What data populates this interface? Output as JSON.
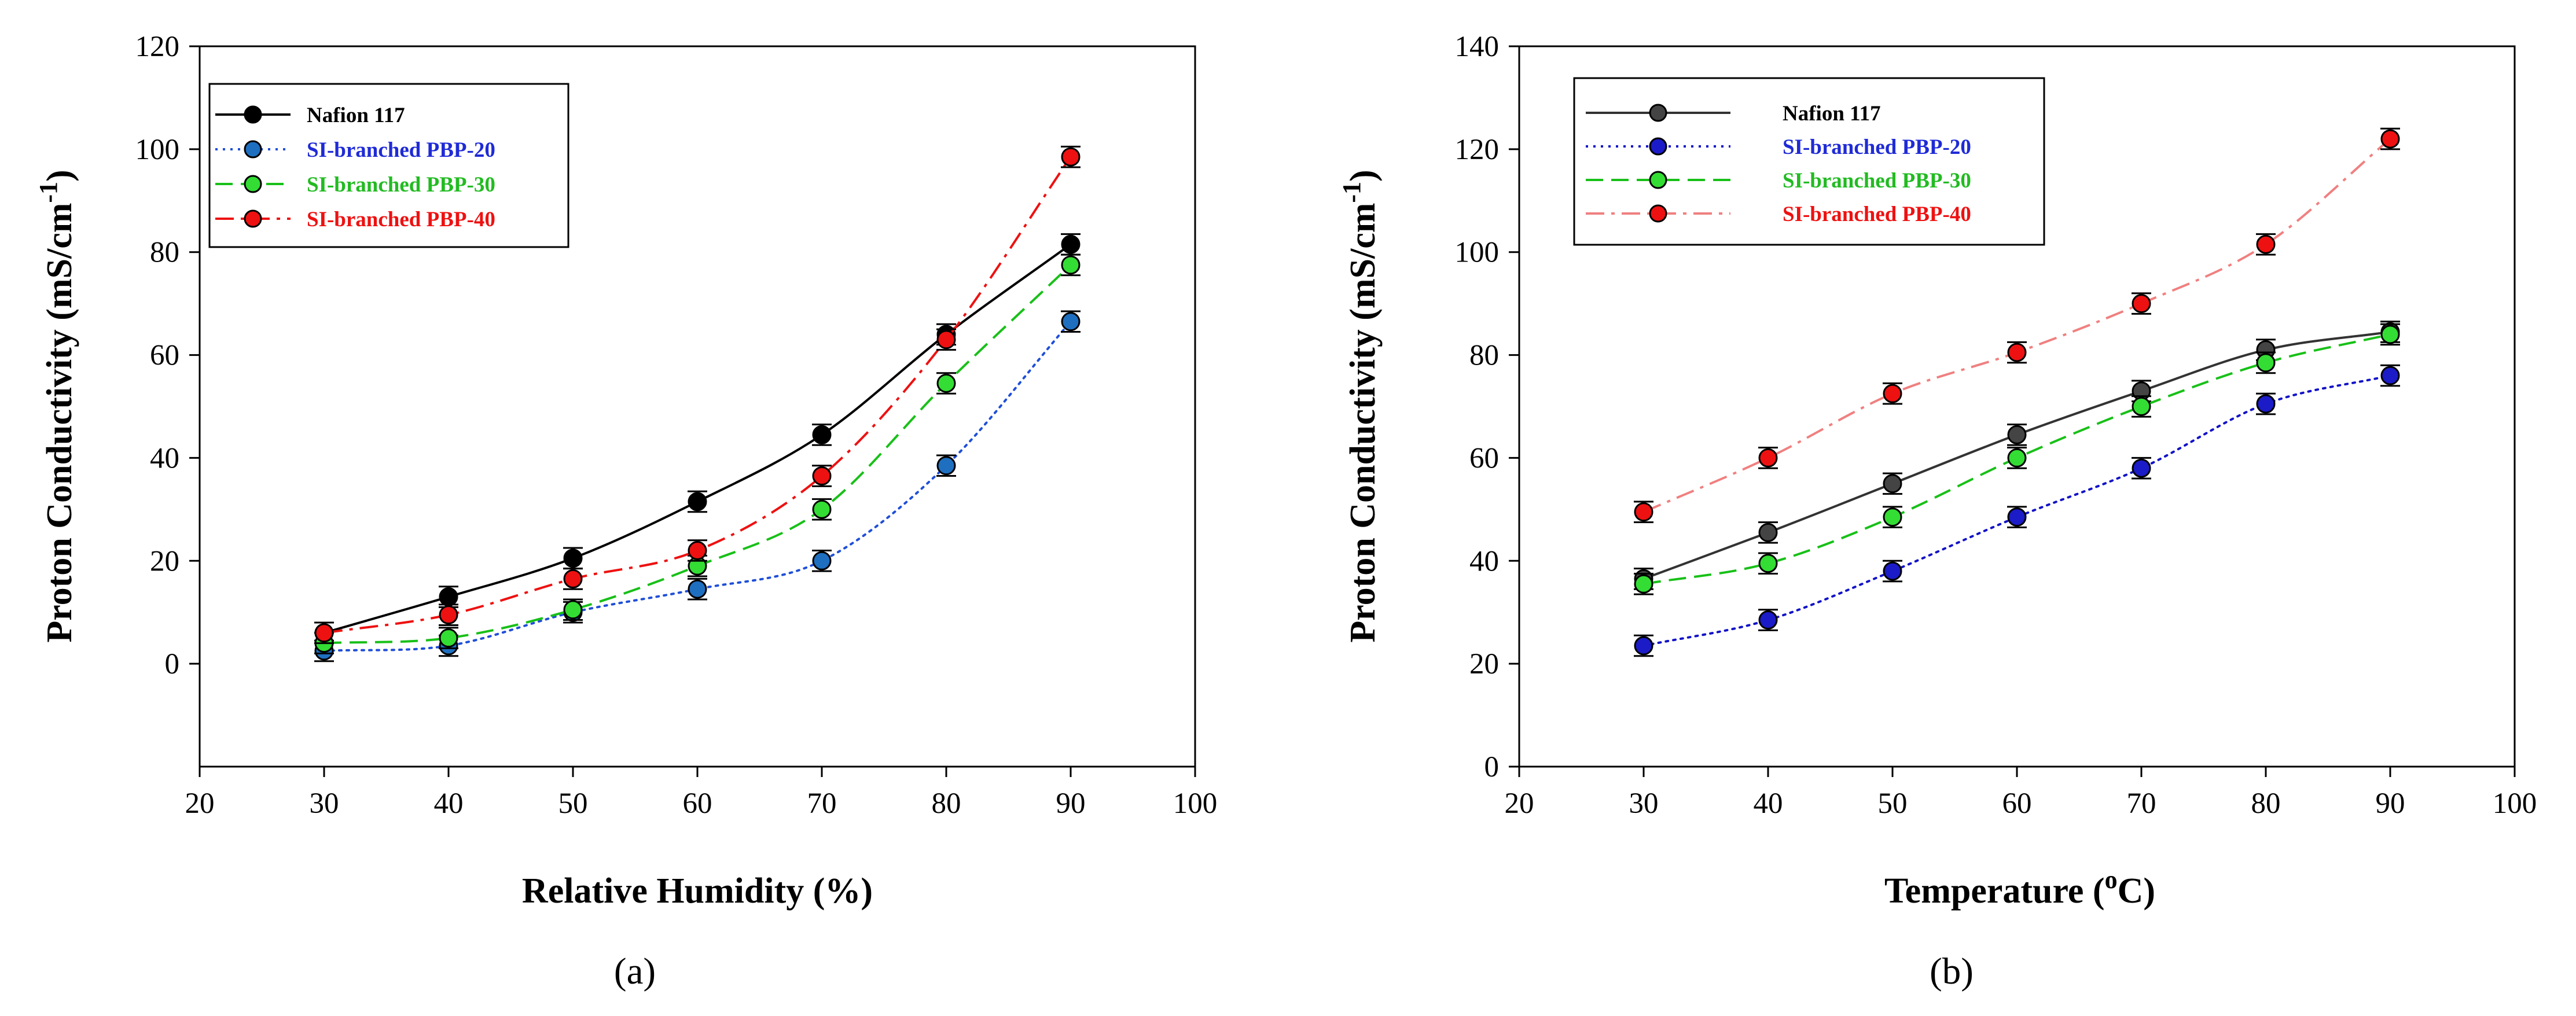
{
  "chart_data": [
    {
      "type": "line",
      "panel_label": "(a)",
      "xlabel": "Relative Humidity (%)",
      "ylabel_main": "Proton Conductivity (mS/cm",
      "ylabel_sup": "-1",
      "ylabel_close": ")",
      "xlim": [
        20,
        100
      ],
      "ylim": [
        -20,
        120
      ],
      "xticks": [
        20,
        30,
        40,
        50,
        60,
        70,
        80,
        90,
        100
      ],
      "yticks": [
        0,
        20,
        40,
        60,
        80,
        100,
        120
      ],
      "grid": false,
      "legend_position": "top-left",
      "series": [
        {
          "name": "Nafion 117",
          "line_color": "#000000",
          "marker_color": "#000000",
          "legend_text_color": "#000000",
          "dash": "solid",
          "x": [
            30,
            40,
            50,
            60,
            70,
            80,
            90
          ],
          "y": [
            6,
            13,
            20.5,
            31.5,
            44.5,
            64,
            81.5
          ],
          "err": [
            2,
            2,
            2,
            2,
            2,
            2,
            2
          ]
        },
        {
          "name": "SI-branched PBP-20",
          "line_color": "#1f4fd8",
          "marker_color": "#1f6fc0",
          "legend_text_color": "#1f2bd6",
          "dash": "dot",
          "x": [
            30,
            40,
            50,
            60,
            70,
            80,
            90
          ],
          "y": [
            2.5,
            3.5,
            10,
            14.5,
            20,
            38.5,
            66.5
          ],
          "err": [
            2,
            2,
            2,
            2,
            2,
            2,
            2
          ]
        },
        {
          "name": "SI-branched PBP-30",
          "line_color": "#18c018",
          "marker_color": "#33dd33",
          "legend_text_color": "#22bb22",
          "dash": "dash",
          "x": [
            30,
            40,
            50,
            60,
            70,
            80,
            90
          ],
          "y": [
            4,
            5,
            10.5,
            19,
            30,
            54.5,
            77.5
          ],
          "err": [
            2,
            2,
            2,
            2,
            2,
            2,
            2
          ]
        },
        {
          "name": "SI-branched PBP-40",
          "line_color": "#ee1111",
          "marker_color": "#ee1111",
          "legend_text_color": "#ee1111",
          "dash": "dashdot",
          "x": [
            30,
            40,
            50,
            60,
            70,
            80,
            90
          ],
          "y": [
            6,
            9.5,
            16.5,
            22,
            36.5,
            63,
            98.5
          ],
          "err": [
            2,
            2,
            2,
            2,
            2,
            2,
            2
          ]
        }
      ]
    },
    {
      "type": "line",
      "panel_label": "(b)",
      "xlabel_main": "Temperature (",
      "xlabel_sup": "o",
      "xlabel_close": "C)",
      "ylabel_main": "Proton Conductivity (mS/cm",
      "ylabel_sup": "-1",
      "ylabel_close": ")",
      "xlim": [
        20,
        100
      ],
      "ylim": [
        0,
        140
      ],
      "xticks": [
        20,
        30,
        40,
        50,
        60,
        70,
        80,
        90,
        100
      ],
      "yticks": [
        0,
        20,
        40,
        60,
        80,
        100,
        120,
        140
      ],
      "grid": false,
      "legend_position": "top-left",
      "series": [
        {
          "name": "Nafion 117",
          "line_color": "#333333",
          "marker_color": "#444444",
          "legend_text_color": "#000000",
          "dash": "solid",
          "x": [
            30,
            40,
            50,
            60,
            70,
            80,
            90
          ],
          "y": [
            36.5,
            45.5,
            55,
            64.5,
            73,
            81,
            84.5
          ],
          "err": [
            2,
            2,
            2,
            2,
            2,
            2,
            2
          ]
        },
        {
          "name": "SI-branched PBP-20",
          "line_color": "#1212c8",
          "marker_color": "#1b1bc8",
          "legend_text_color": "#1f2bd6",
          "dash": "dot",
          "x": [
            30,
            40,
            50,
            60,
            70,
            80,
            90
          ],
          "y": [
            23.5,
            28.5,
            38,
            48.5,
            58,
            70.5,
            76
          ],
          "err": [
            2,
            2,
            2,
            2,
            2,
            2,
            2
          ]
        },
        {
          "name": "SI-branched PBP-30",
          "line_color": "#18c018",
          "marker_color": "#33dd33",
          "legend_text_color": "#22bb22",
          "dash": "dash",
          "x": [
            30,
            40,
            50,
            60,
            70,
            80,
            90
          ],
          "y": [
            35.5,
            39.5,
            48.5,
            60,
            70,
            78.5,
            84
          ],
          "err": [
            2,
            2,
            2,
            2,
            2,
            2,
            2
          ]
        },
        {
          "name": "SI-branched PBP-40",
          "line_color": "#f08080",
          "marker_color": "#ee1111",
          "legend_text_color": "#ee1111",
          "dash": "dashdot",
          "x": [
            30,
            40,
            50,
            60,
            70,
            80,
            90
          ],
          "y": [
            49.5,
            60,
            72.5,
            80.5,
            90,
            101.5,
            122
          ],
          "err": [
            2,
            2,
            2,
            2,
            2,
            2,
            2
          ]
        }
      ]
    }
  ]
}
